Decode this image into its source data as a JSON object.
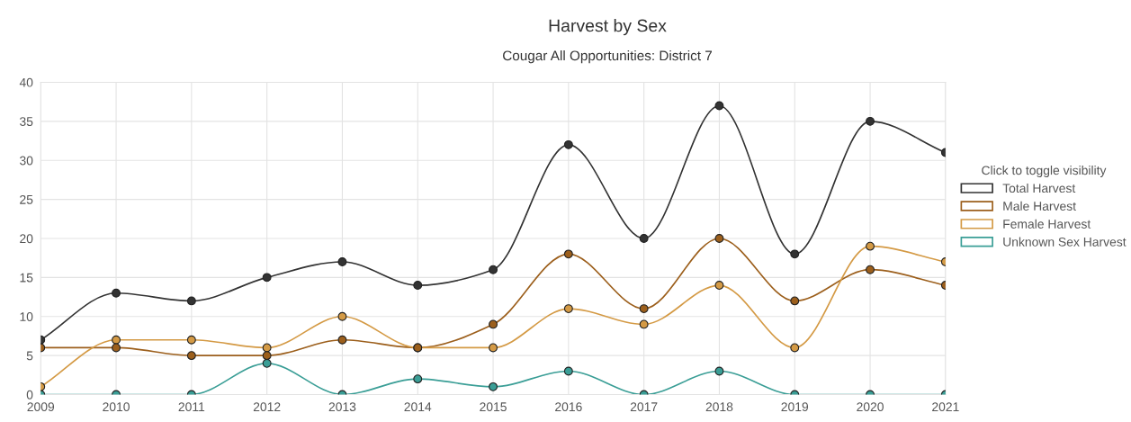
{
  "chart_data": {
    "type": "line",
    "title": "Harvest by Sex",
    "subtitle": "Cougar All Opportunities: District 7",
    "categories": [
      "2009",
      "2010",
      "2011",
      "2012",
      "2013",
      "2014",
      "2015",
      "2016",
      "2017",
      "2018",
      "2019",
      "2020",
      "2021"
    ],
    "series": [
      {
        "name": "Total Harvest",
        "color": "#333333",
        "values": [
          7,
          13,
          12,
          15,
          17,
          14,
          16,
          32,
          20,
          37,
          18,
          35,
          31
        ]
      },
      {
        "name": "Male Harvest",
        "color": "#9c5f1c",
        "values": [
          6,
          6,
          5,
          5,
          7,
          6,
          9,
          18,
          11,
          20,
          12,
          16,
          14
        ]
      },
      {
        "name": "Female Harvest",
        "color": "#d49a45",
        "values": [
          1,
          7,
          7,
          6,
          10,
          6,
          6,
          11,
          9,
          14,
          6,
          19,
          17
        ]
      },
      {
        "name": "Unknown Sex Harvest",
        "color": "#3a9e96",
        "values": [
          0,
          0,
          0,
          4,
          0,
          2,
          1,
          3,
          0,
          3,
          0,
          0,
          0
        ]
      }
    ],
    "legend_title": "Click to toggle visibility",
    "legend": "right",
    "ylim": [
      0,
      40
    ],
    "yticks": [
      0,
      5,
      10,
      15,
      20,
      25,
      30,
      35,
      40
    ],
    "grid": true,
    "marker": "circle",
    "line_style": "solid"
  }
}
